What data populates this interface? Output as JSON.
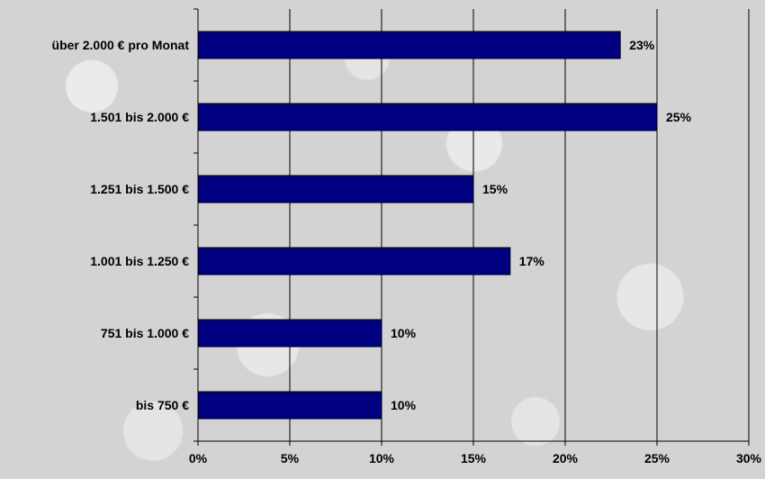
{
  "chart_data": {
    "type": "bar",
    "orientation": "horizontal",
    "categories": [
      "über 2.000 € pro Monat",
      "1.501 bis 2.000 €",
      "1.251 bis 1.500 €",
      "1.001 bis 1.250 €",
      "751 bis 1.000 €",
      "bis 750 €"
    ],
    "values": [
      23,
      25,
      15,
      17,
      10,
      10
    ],
    "value_labels": [
      "23%",
      "25%",
      "15%",
      "17%",
      "10%",
      "10%"
    ],
    "xlim": [
      0,
      30
    ],
    "xticks": [
      0,
      5,
      10,
      15,
      20,
      25,
      30
    ],
    "xtick_labels": [
      "0%",
      "5%",
      "10%",
      "15%",
      "20%",
      "25%",
      "30%"
    ],
    "grid": "vertical",
    "bar_color": "#000080",
    "title": "",
    "xlabel": "",
    "ylabel": ""
  }
}
